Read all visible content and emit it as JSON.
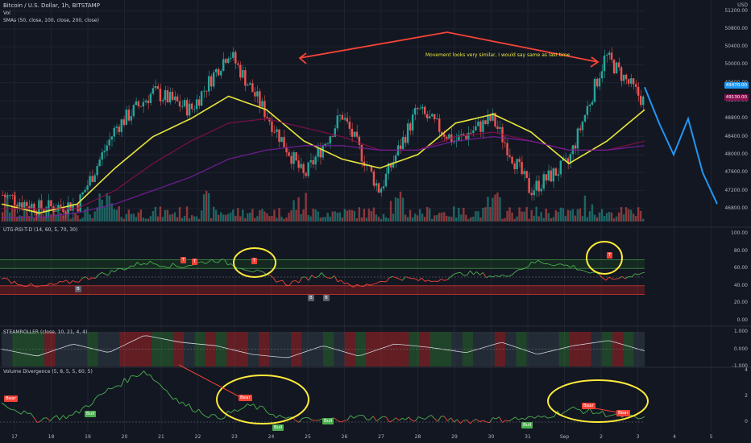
{
  "header": {
    "symbol": "Bitcoin / U.S. Dollar, 1h, BITSTAMP",
    "vol": "Vol",
    "smas": "SMAs (50, close, 100, close, 200, close)",
    "currency": "USD"
  },
  "annotation": "Movement looks very similar, I would say same as last time",
  "panes": {
    "rsi": "UTG-RSI-T-D (14, 60, 5, 70, 30)",
    "steam": "STEAMROLLER (close, 10, 21, 4, 4)",
    "vdiv": "Volume Divergence (5, 8, 5, 5, 60, 5)"
  },
  "price_axis": [
    "51200.00",
    "50800.00",
    "50400.00",
    "50000.00",
    "49600.00",
    "49200.00",
    "48800.00",
    "48400.00",
    "48000.00",
    "47600.00",
    "47200.00",
    "46800.00"
  ],
  "price_tags": {
    "a": "49470.00",
    "b": "49130.00"
  },
  "rsi_axis": [
    "100.00",
    "80.00",
    "60.00",
    "40.00",
    "20.00",
    "0.00"
  ],
  "steam_axis": [
    "1.000",
    "0.000",
    "-1.000"
  ],
  "vdiv_axis": [
    "4",
    "2",
    "0"
  ],
  "x_labels": [
    "17",
    "18",
    "19",
    "20",
    "21",
    "22",
    "23",
    "24",
    "25",
    "26",
    "27",
    "28",
    "29",
    "30",
    "31",
    "Sep",
    "2",
    "3",
    "4",
    "5"
  ],
  "signals": {
    "bull": "Bull",
    "bear": "Bear",
    "top_letter": "T",
    "bottom_letter": "B"
  },
  "colors": {
    "background": "#131722",
    "up": "#26a69a",
    "down": "#ef5350",
    "sma50": "#e8e53b",
    "sma100": "#880e4f",
    "sma200": "#7b1fa2",
    "projection": "#2196f3",
    "arrow": "#f44336",
    "rsi_line_up": "#4caf50",
    "rsi_line_down": "#f44336"
  },
  "chart_data": [
    {
      "type": "candlestick",
      "title": "Bitcoin / U.S. Dollar, 1h, BITSTAMP",
      "x": [
        "17",
        "18",
        "19",
        "20",
        "21",
        "22",
        "23",
        "24",
        "25",
        "26",
        "27",
        "28",
        "29",
        "30",
        "31",
        "Sep",
        "2",
        "3"
      ],
      "close_approx": [
        47100,
        46800,
        46900,
        48600,
        49400,
        49000,
        50300,
        48900,
        47500,
        48900,
        47200,
        49000,
        48300,
        48800,
        47200,
        47800,
        50200,
        49200
      ],
      "ylim": [
        46600,
        51300
      ],
      "series": [
        {
          "name": "SMA 50",
          "values": [
            46900,
            46700,
            46900,
            47700,
            48400,
            48800,
            49300,
            49000,
            48300,
            47900,
            47700,
            48000,
            48700,
            48900,
            48500,
            47800,
            48300,
            49000
          ]
        },
        {
          "name": "SMA 100",
          "values": [
            46800,
            46800,
            46800,
            47200,
            47800,
            48300,
            48700,
            48800,
            48600,
            48400,
            48100,
            48100,
            48400,
            48500,
            48300,
            48100,
            48100,
            48300
          ]
        },
        {
          "name": "SMA 200",
          "values": [
            46600,
            46600,
            46700,
            46900,
            47200,
            47500,
            47900,
            48100,
            48200,
            48200,
            48100,
            48100,
            48300,
            48400,
            48300,
            48100,
            48100,
            48200
          ]
        }
      ],
      "projection": [
        49500,
        48700,
        48000,
        48800,
        47600,
        46900
      ]
    },
    {
      "type": "line",
      "title": "UTG-RSI-T-D (14, 60, 5, 70, 30)",
      "ylim": [
        0,
        100
      ],
      "levels": [
        70,
        60,
        50,
        40,
        30
      ],
      "values": [
        48,
        38,
        45,
        55,
        67,
        62,
        70,
        58,
        42,
        54,
        38,
        50,
        45,
        55,
        50,
        68,
        62,
        47,
        55
      ]
    },
    {
      "type": "line",
      "title": "STEAMROLLER (close, 10, 21, 4, 4)",
      "ylim": [
        -1,
        1
      ],
      "values": [
        0,
        -0.4,
        0.3,
        -0.2,
        0.8,
        0.4,
        0.2,
        -0.3,
        -0.5,
        0.2,
        -0.4,
        0.3,
        0.1,
        -0.2,
        0.4,
        -0.3,
        0.2,
        0.5,
        -0.1
      ]
    },
    {
      "type": "line",
      "title": "Volume Divergence (5, 8, 5, 5, 60, 5)",
      "ylim": [
        -0.5,
        4
      ],
      "values": [
        1.5,
        0.2,
        0.5,
        2.5,
        4.0,
        1.5,
        0.3,
        1.3,
        0.2,
        0.1,
        0.4,
        0.2,
        0.3,
        0.1,
        0.2,
        0.3,
        1.0,
        0.6,
        0.2
      ]
    }
  ]
}
